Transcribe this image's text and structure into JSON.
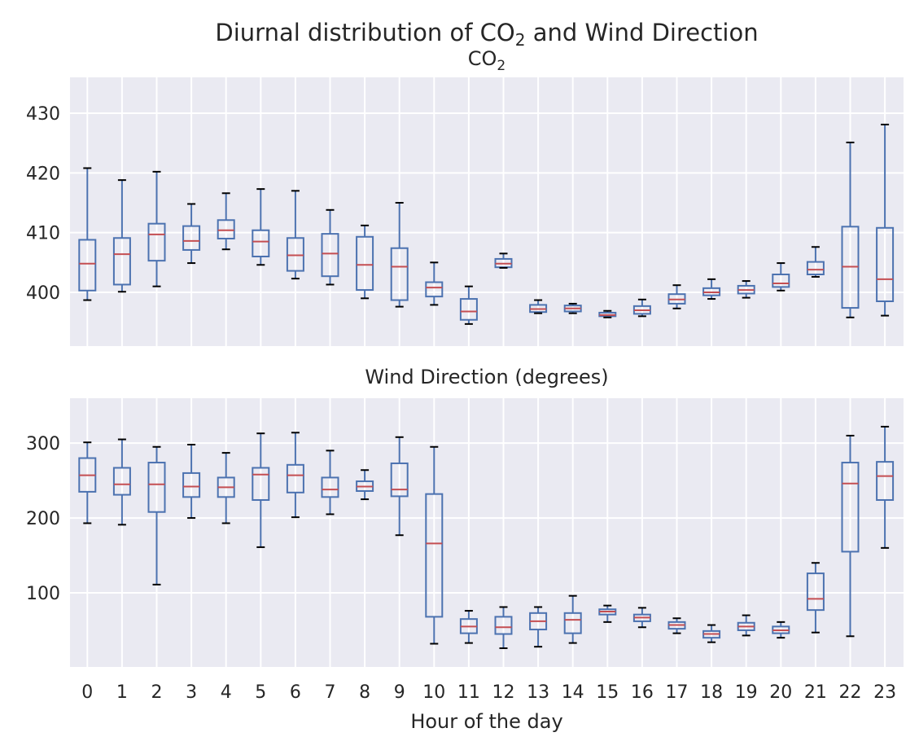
{
  "figure": {
    "suptitle_prefix": "Diurnal distribution of CO",
    "suptitle_sub": "2",
    "suptitle_suffix": " and Wind Direction"
  },
  "colors": {
    "background": "#EAEAF2",
    "grid": "#FFFFFF",
    "box": "#4C72B0",
    "median": "#C44E52",
    "cap": "#000000"
  },
  "chart_data": [
    {
      "type": "box",
      "title": "CO",
      "title_sub": "2",
      "xlabel": "",
      "ylabel": "",
      "ylim": [
        391,
        436
      ],
      "yticks": [
        400,
        410,
        420,
        430
      ],
      "categories": [
        "0",
        "1",
        "2",
        "3",
        "4",
        "5",
        "6",
        "7",
        "8",
        "9",
        "10",
        "11",
        "12",
        "13",
        "14",
        "15",
        "16",
        "17",
        "18",
        "19",
        "20",
        "21",
        "22",
        "23"
      ],
      "boxes": [
        {
          "whisker_low": 398.7,
          "q1": 400.3,
          "median": 404.8,
          "q3": 408.8,
          "whisker_high": 420.8
        },
        {
          "whisker_low": 400.1,
          "q1": 401.3,
          "median": 406.4,
          "q3": 409.1,
          "whisker_high": 418.8
        },
        {
          "whisker_low": 401.0,
          "q1": 405.3,
          "median": 409.7,
          "q3": 411.5,
          "whisker_high": 420.2
        },
        {
          "whisker_low": 404.9,
          "q1": 407.1,
          "median": 408.6,
          "q3": 411.1,
          "whisker_high": 414.8
        },
        {
          "whisker_low": 407.2,
          "q1": 409.0,
          "median": 410.4,
          "q3": 412.1,
          "whisker_high": 416.6
        },
        {
          "whisker_low": 404.6,
          "q1": 406.0,
          "median": 408.5,
          "q3": 410.4,
          "whisker_high": 417.3
        },
        {
          "whisker_low": 402.3,
          "q1": 403.6,
          "median": 406.2,
          "q3": 409.1,
          "whisker_high": 417.0
        },
        {
          "whisker_low": 401.3,
          "q1": 402.7,
          "median": 406.5,
          "q3": 409.8,
          "whisker_high": 413.8
        },
        {
          "whisker_low": 399.0,
          "q1": 400.4,
          "median": 404.6,
          "q3": 409.3,
          "whisker_high": 411.2
        },
        {
          "whisker_low": 397.6,
          "q1": 398.7,
          "median": 404.3,
          "q3": 407.4,
          "whisker_high": 415.0
        },
        {
          "whisker_low": 397.9,
          "q1": 399.3,
          "median": 400.8,
          "q3": 401.7,
          "whisker_high": 405.0
        },
        {
          "whisker_low": 394.7,
          "q1": 395.4,
          "median": 396.8,
          "q3": 398.9,
          "whisker_high": 401.0
        },
        {
          "whisker_low": 404.1,
          "q1": 404.2,
          "median": 404.8,
          "q3": 405.6,
          "whisker_high": 406.5
        },
        {
          "whisker_low": 396.5,
          "q1": 396.7,
          "median": 397.2,
          "q3": 397.9,
          "whisker_high": 398.7
        },
        {
          "whisker_low": 396.5,
          "q1": 396.8,
          "median": 397.3,
          "q3": 397.8,
          "whisker_high": 398.1
        },
        {
          "whisker_low": 395.8,
          "q1": 396.0,
          "median": 396.2,
          "q3": 396.6,
          "whisker_high": 396.9
        },
        {
          "whisker_low": 396.0,
          "q1": 396.4,
          "median": 397.0,
          "q3": 397.7,
          "whisker_high": 398.8
        },
        {
          "whisker_low": 397.3,
          "q1": 398.1,
          "median": 398.8,
          "q3": 399.7,
          "whisker_high": 401.2
        },
        {
          "whisker_low": 398.9,
          "q1": 399.5,
          "median": 400.0,
          "q3": 400.7,
          "whisker_high": 402.2
        },
        {
          "whisker_low": 399.1,
          "q1": 399.8,
          "median": 400.4,
          "q3": 401.1,
          "whisker_high": 401.9
        },
        {
          "whisker_low": 400.3,
          "q1": 400.9,
          "median": 401.5,
          "q3": 403.0,
          "whisker_high": 404.9
        },
        {
          "whisker_low": 402.6,
          "q1": 403.0,
          "median": 403.8,
          "q3": 405.1,
          "whisker_high": 407.6
        },
        {
          "whisker_low": 395.8,
          "q1": 397.4,
          "median": 404.3,
          "q3": 411.0,
          "whisker_high": 425.1
        },
        {
          "whisker_low": 396.1,
          "q1": 398.5,
          "median": 402.2,
          "q3": 410.8,
          "whisker_high": 428.1
        }
      ]
    },
    {
      "type": "box",
      "title": "Wind Direction (degrees)",
      "xlabel": "Hour of the day",
      "ylabel": "",
      "ylim": [
        1,
        360
      ],
      "yticks": [
        100,
        200,
        300
      ],
      "categories": [
        "0",
        "1",
        "2",
        "3",
        "4",
        "5",
        "6",
        "7",
        "8",
        "9",
        "10",
        "11",
        "12",
        "13",
        "14",
        "15",
        "16",
        "17",
        "18",
        "19",
        "20",
        "21",
        "22",
        "23"
      ],
      "boxes": [
        {
          "whisker_low": 193,
          "q1": 235,
          "median": 257,
          "q3": 280,
          "whisker_high": 301
        },
        {
          "whisker_low": 191,
          "q1": 231,
          "median": 245,
          "q3": 267,
          "whisker_high": 305
        },
        {
          "whisker_low": 111,
          "q1": 208,
          "median": 245,
          "q3": 274,
          "whisker_high": 295
        },
        {
          "whisker_low": 200,
          "q1": 228,
          "median": 242,
          "q3": 260,
          "whisker_high": 298
        },
        {
          "whisker_low": 193,
          "q1": 228,
          "median": 241,
          "q3": 254,
          "whisker_high": 287
        },
        {
          "whisker_low": 161,
          "q1": 224,
          "median": 258,
          "q3": 267,
          "whisker_high": 313
        },
        {
          "whisker_low": 201,
          "q1": 234,
          "median": 257,
          "q3": 271,
          "whisker_high": 314
        },
        {
          "whisker_low": 205,
          "q1": 228,
          "median": 238,
          "q3": 254,
          "whisker_high": 290
        },
        {
          "whisker_low": 225,
          "q1": 236,
          "median": 242,
          "q3": 249,
          "whisker_high": 264
        },
        {
          "whisker_low": 177,
          "q1": 229,
          "median": 238,
          "q3": 273,
          "whisker_high": 308
        },
        {
          "whisker_low": 32,
          "q1": 68,
          "median": 166,
          "q3": 232,
          "whisker_high": 295
        },
        {
          "whisker_low": 33,
          "q1": 46,
          "median": 55,
          "q3": 65,
          "whisker_high": 76
        },
        {
          "whisker_low": 26,
          "q1": 45,
          "median": 54,
          "q3": 68,
          "whisker_high": 81
        },
        {
          "whisker_low": 28,
          "q1": 51,
          "median": 62,
          "q3": 73,
          "whisker_high": 81
        },
        {
          "whisker_low": 33,
          "q1": 46,
          "median": 64,
          "q3": 73,
          "whisker_high": 96
        },
        {
          "whisker_low": 61,
          "q1": 71,
          "median": 75,
          "q3": 78,
          "whisker_high": 83
        },
        {
          "whisker_low": 54,
          "q1": 62,
          "median": 67,
          "q3": 71,
          "whisker_high": 80
        },
        {
          "whisker_low": 46,
          "q1": 52,
          "median": 57,
          "q3": 61,
          "whisker_high": 66
        },
        {
          "whisker_low": 34,
          "q1": 40,
          "median": 45,
          "q3": 49,
          "whisker_high": 57
        },
        {
          "whisker_low": 43,
          "q1": 50,
          "median": 55,
          "q3": 60,
          "whisker_high": 70
        },
        {
          "whisker_low": 40,
          "q1": 46,
          "median": 50,
          "q3": 55,
          "whisker_high": 61
        },
        {
          "whisker_low": 47,
          "q1": 77,
          "median": 92,
          "q3": 126,
          "whisker_high": 140
        },
        {
          "whisker_low": 42,
          "q1": 155,
          "median": 246,
          "q3": 274,
          "whisker_high": 310
        },
        {
          "whisker_low": 160,
          "q1": 224,
          "median": 256,
          "q3": 275,
          "whisker_high": 322
        }
      ]
    }
  ]
}
